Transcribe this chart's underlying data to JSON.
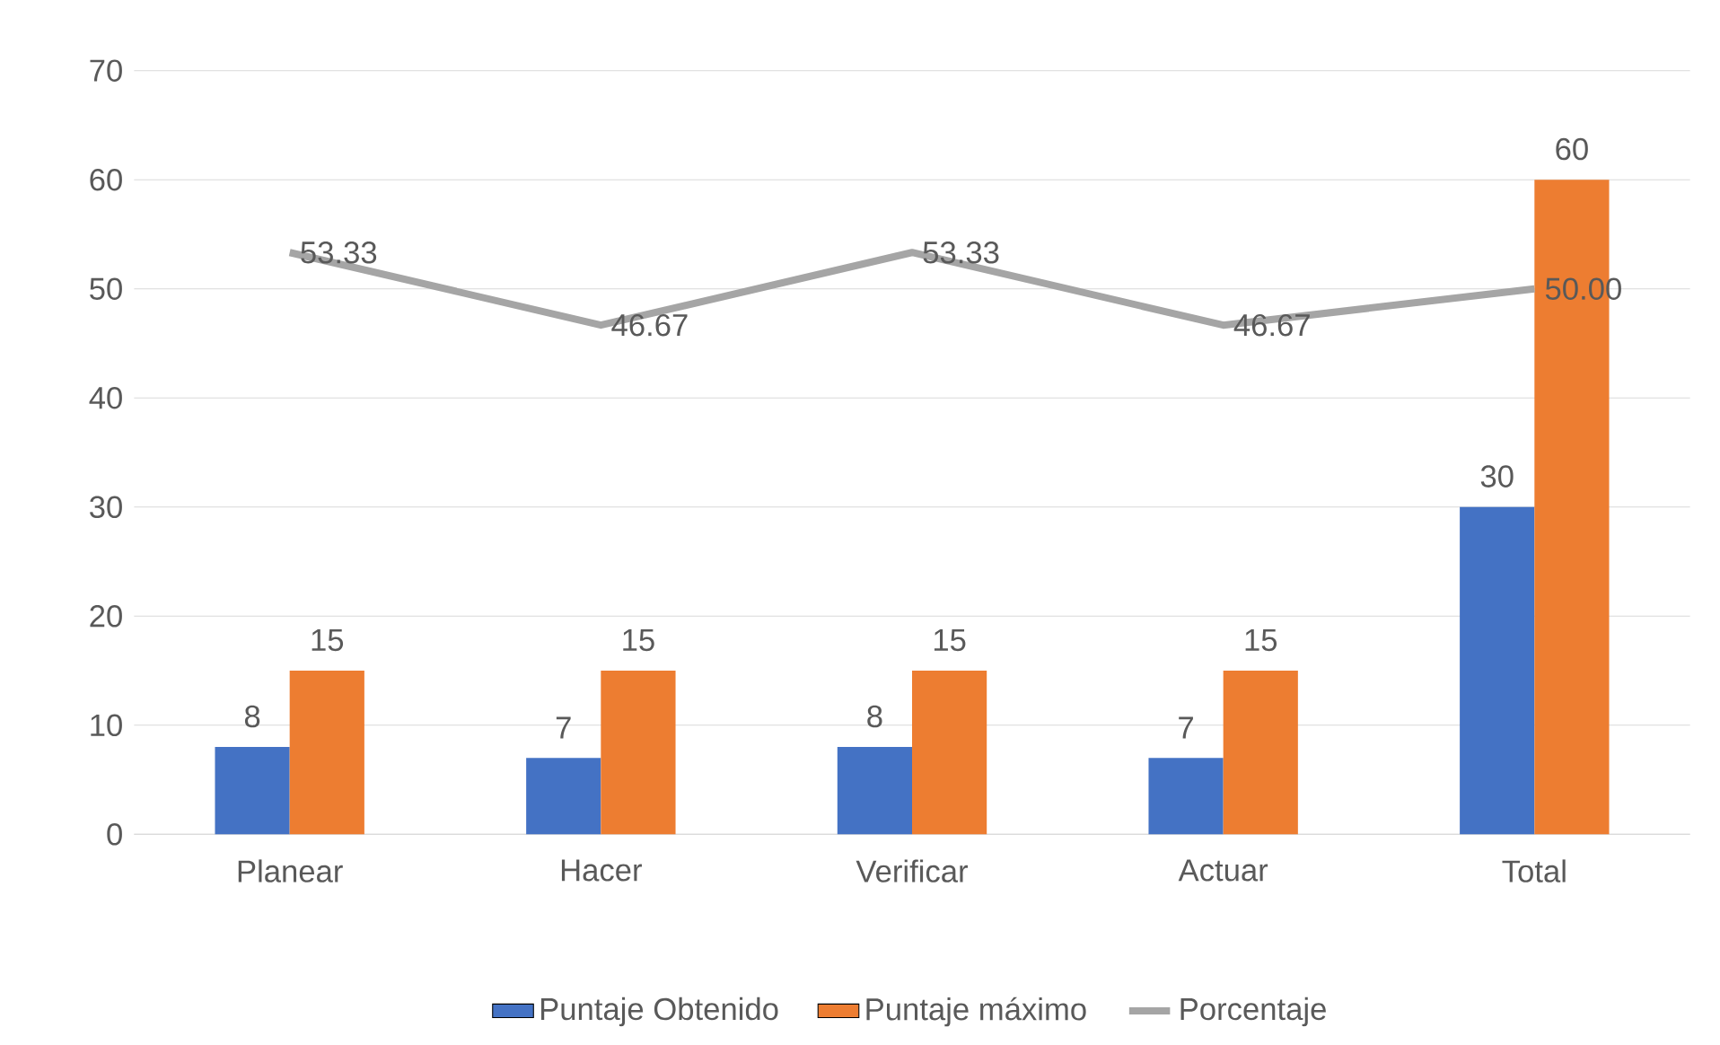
{
  "chart_data": {
    "type": "bar",
    "categories": [
      "Planear",
      "Hacer",
      "Verificar",
      "Actuar",
      "Total"
    ],
    "series": [
      {
        "name": "Puntaje Obtenido",
        "color": "#4472c4",
        "values": [
          8,
          7,
          8,
          7,
          30
        ]
      },
      {
        "name": "Puntaje máximo",
        "color": "#ed7d31",
        "values": [
          15,
          15,
          15,
          15,
          60
        ]
      },
      {
        "name": "Porcentaje",
        "type": "line",
        "color": "#a5a5a5",
        "values": [
          53.33,
          46.67,
          53.33,
          46.67,
          50.0
        ],
        "value_labels": [
          "53.33",
          "46.67",
          "53.33",
          "46.67",
          "50.00"
        ]
      }
    ],
    "ylim": [
      0,
      70
    ],
    "yticks": [
      0,
      10,
      20,
      30,
      40,
      50,
      60,
      70
    ],
    "grid": "y",
    "legend": "bottom",
    "data_labels": true,
    "marker": "none",
    "line_style": "solid"
  }
}
